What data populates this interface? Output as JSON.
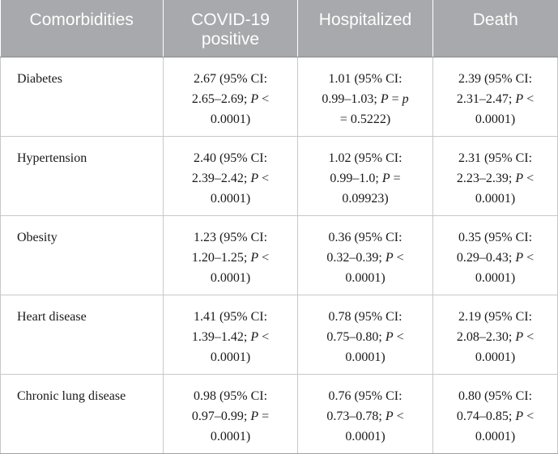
{
  "headers": [
    "Comorbidities",
    "COVID-19 positive",
    "Hospitalized",
    "Death"
  ],
  "rows": [
    {
      "label": "Diabetes",
      "cells": [
        {
          "a": "2.67 (95% CI:",
          "b": "2.65–2.69; ",
          "p": "P",
          "c": " <",
          "d": "0.0001)"
        },
        {
          "a": "1.01 (95% CI:",
          "b": "0.99–1.03; ",
          "p": "P",
          "c": " = ",
          "p2": "p",
          "d": "= 0.5222)"
        },
        {
          "a": "2.39 (95% CI:",
          "b": "2.31–2.47; ",
          "p": "P",
          "c": " <",
          "d": "0.0001)"
        }
      ]
    },
    {
      "label": "Hypertension",
      "cells": [
        {
          "a": "2.40 (95% CI:",
          "b": "2.39–2.42; ",
          "p": "P",
          "c": " <",
          "d": "0.0001)"
        },
        {
          "a": "1.02 (95% CI:",
          "b": "0.99–1.0; ",
          "p": "P",
          "c": " =",
          "d": "0.09923)"
        },
        {
          "a": "2.31 (95% CI:",
          "b": "2.23–2.39; ",
          "p": "P",
          "c": " <",
          "d": "0.0001)"
        }
      ]
    },
    {
      "label": "Obesity",
      "cells": [
        {
          "a": "1.23 (95% CI:",
          "b": "1.20–1.25; ",
          "p": "P",
          "c": " <",
          "d": "0.0001)"
        },
        {
          "a": "0.36 (95% CI:",
          "b": "0.32–0.39; ",
          "p": "P",
          "c": " <",
          "d": "0.0001)"
        },
        {
          "a": "0.35 (95% CI:",
          "b": "0.29–0.43; ",
          "p": "P",
          "c": " <",
          "d": "0.0001)"
        }
      ]
    },
    {
      "label": "Heart disease",
      "cells": [
        {
          "a": "1.41 (95% CI:",
          "b": "1.39–1.42; ",
          "p": "P",
          "c": " <",
          "d": "0.0001)"
        },
        {
          "a": "0.78 (95% CI:",
          "b": "0.75–0.80; ",
          "p": "P",
          "c": " <",
          "d": "0.0001)"
        },
        {
          "a": "2.19 (95% CI:",
          "b": "2.08–2.30; ",
          "p": "P",
          "c": " <",
          "d": "0.0001)"
        }
      ]
    },
    {
      "label": "Chronic lung disease",
      "cells": [
        {
          "a": "0.98 (95% CI:",
          "b": "0.97–0.99; ",
          "p": "P",
          "c": " =",
          "d": "0.0001)"
        },
        {
          "a": "0.76 (95% CI:",
          "b": "0.73–0.78; ",
          "p": "P",
          "c": " <",
          "d": "0.0001)"
        },
        {
          "a": "0.80 (95% CI:",
          "b": "0.74–0.85; ",
          "p": "P",
          "c": " <",
          "d": "0.0001)"
        }
      ]
    }
  ]
}
